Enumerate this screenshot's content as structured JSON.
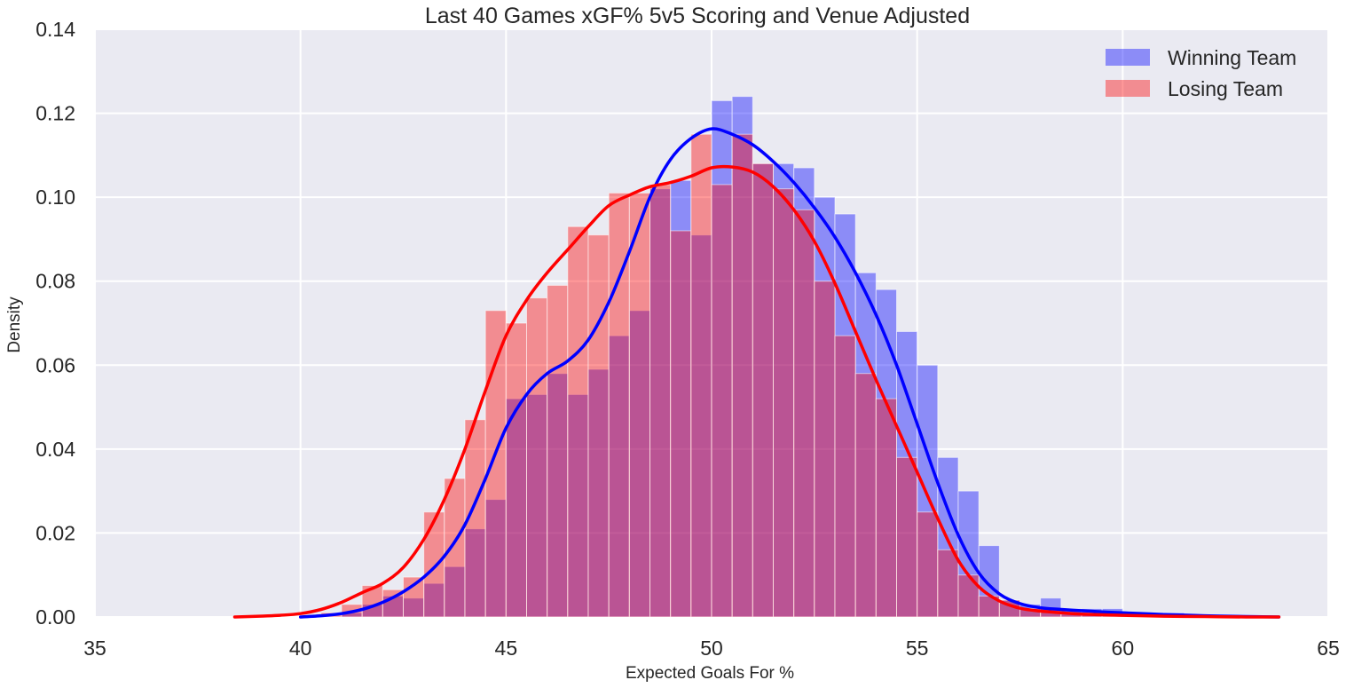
{
  "chart_data": {
    "type": "histogram",
    "title": "Last 40 Games xGF% 5v5 Scoring and Venue Adjusted",
    "xlabel": "Expected Goals For %",
    "ylabel": "Density",
    "xlim": [
      35,
      65
    ],
    "ylim": [
      0,
      0.14
    ],
    "xticks": [
      35,
      40,
      45,
      50,
      55,
      60,
      65
    ],
    "yticks": [
      0.0,
      0.02,
      0.04,
      0.06,
      0.08,
      0.1,
      0.12,
      0.14
    ],
    "xtick_labels": [
      "35",
      "40",
      "45",
      "50",
      "55",
      "60",
      "65"
    ],
    "ytick_labels": [
      "0.00",
      "0.02",
      "0.04",
      "0.06",
      "0.08",
      "0.10",
      "0.12",
      "0.14"
    ],
    "grid": true,
    "legend_position": "top-right",
    "series": [
      {
        "name": "Winning Team",
        "color": "#0000ff",
        "bar_alpha": 0.4,
        "bins": [
          [
            41.0,
            41.5,
            0.001
          ],
          [
            41.5,
            42.0,
            0.003
          ],
          [
            42.0,
            42.5,
            0.005
          ],
          [
            42.5,
            43.0,
            0.0045
          ],
          [
            43.0,
            43.5,
            0.008
          ],
          [
            43.5,
            44.0,
            0.012
          ],
          [
            44.0,
            44.5,
            0.021
          ],
          [
            44.5,
            45.0,
            0.028
          ],
          [
            45.0,
            45.5,
            0.052
          ],
          [
            45.5,
            46.0,
            0.053
          ],
          [
            46.0,
            46.5,
            0.058
          ],
          [
            46.5,
            47.0,
            0.053
          ],
          [
            47.0,
            47.5,
            0.059
          ],
          [
            47.5,
            48.0,
            0.067
          ],
          [
            48.0,
            48.5,
            0.073
          ],
          [
            48.5,
            49.0,
            0.102
          ],
          [
            49.0,
            49.5,
            0.104
          ],
          [
            49.5,
            50.0,
            0.091
          ],
          [
            50.0,
            50.5,
            0.123
          ],
          [
            50.5,
            51.0,
            0.124
          ],
          [
            51.0,
            51.5,
            0.108
          ],
          [
            51.5,
            52.0,
            0.108
          ],
          [
            52.0,
            52.5,
            0.107
          ],
          [
            52.5,
            53.0,
            0.1
          ],
          [
            53.0,
            53.5,
            0.096
          ],
          [
            53.5,
            54.0,
            0.082
          ],
          [
            54.0,
            54.5,
            0.078
          ],
          [
            54.5,
            55.0,
            0.068
          ],
          [
            55.0,
            55.5,
            0.06
          ],
          [
            55.5,
            56.0,
            0.038
          ],
          [
            56.0,
            56.5,
            0.03
          ],
          [
            56.5,
            57.0,
            0.017
          ],
          [
            57.0,
            57.5,
            0.004
          ],
          [
            57.5,
            58.0,
            0.003
          ],
          [
            58.0,
            58.5,
            0.0045
          ],
          [
            58.5,
            59.0,
            0.002
          ],
          [
            59.0,
            59.5,
            0.002
          ],
          [
            59.5,
            60.0,
            0.002
          ],
          [
            60.0,
            60.5,
            0.001
          ],
          [
            60.5,
            61.0,
            0.001
          ],
          [
            61.0,
            61.5,
            0.001
          ],
          [
            61.5,
            62.0,
            0.0005
          ]
        ],
        "kde": [
          [
            40.0,
            0.0
          ],
          [
            40.5,
            0.0003
          ],
          [
            41.0,
            0.0008
          ],
          [
            41.5,
            0.0018
          ],
          [
            42.0,
            0.0035
          ],
          [
            42.5,
            0.006
          ],
          [
            43.0,
            0.0095
          ],
          [
            43.5,
            0.0145
          ],
          [
            44.0,
            0.022
          ],
          [
            44.5,
            0.033
          ],
          [
            45.0,
            0.045
          ],
          [
            45.5,
            0.053
          ],
          [
            46.0,
            0.058
          ],
          [
            46.5,
            0.061
          ],
          [
            47.0,
            0.066
          ],
          [
            47.5,
            0.075
          ],
          [
            48.0,
            0.087
          ],
          [
            48.5,
            0.1
          ],
          [
            49.0,
            0.109
          ],
          [
            49.5,
            0.114
          ],
          [
            50.0,
            0.1163
          ],
          [
            50.5,
            0.115
          ],
          [
            51.0,
            0.1125
          ],
          [
            51.5,
            0.1085
          ],
          [
            52.0,
            0.1035
          ],
          [
            52.5,
            0.0975
          ],
          [
            53.0,
            0.0905
          ],
          [
            53.5,
            0.082
          ],
          [
            54.0,
            0.072
          ],
          [
            54.5,
            0.06
          ],
          [
            55.0,
            0.046
          ],
          [
            55.5,
            0.032
          ],
          [
            56.0,
            0.0195
          ],
          [
            56.5,
            0.0105
          ],
          [
            57.0,
            0.0055
          ],
          [
            57.5,
            0.0032
          ],
          [
            58.0,
            0.0022
          ],
          [
            58.5,
            0.0018
          ],
          [
            59.0,
            0.0015
          ],
          [
            59.5,
            0.0012
          ],
          [
            60.0,
            0.001
          ],
          [
            61.0,
            0.0006
          ],
          [
            62.0,
            0.0003
          ],
          [
            63.0,
            0.0001
          ],
          [
            63.8,
            0.0
          ]
        ]
      },
      {
        "name": "Losing Team",
        "color": "#ff0000",
        "bar_alpha": 0.4,
        "bins": [
          [
            40.5,
            41.0,
            0.001
          ],
          [
            41.0,
            41.5,
            0.003
          ],
          [
            41.5,
            42.0,
            0.0075
          ],
          [
            42.0,
            42.5,
            0.0065
          ],
          [
            42.5,
            43.0,
            0.0095
          ],
          [
            43.0,
            43.5,
            0.025
          ],
          [
            43.5,
            44.0,
            0.033
          ],
          [
            44.0,
            44.5,
            0.047
          ],
          [
            44.5,
            45.0,
            0.073
          ],
          [
            45.0,
            45.5,
            0.07
          ],
          [
            45.5,
            46.0,
            0.076
          ],
          [
            46.0,
            46.5,
            0.079
          ],
          [
            46.5,
            47.0,
            0.093
          ],
          [
            47.0,
            47.5,
            0.091
          ],
          [
            47.5,
            48.0,
            0.101
          ],
          [
            48.0,
            48.5,
            0.101
          ],
          [
            48.5,
            49.0,
            0.103
          ],
          [
            49.0,
            49.5,
            0.092
          ],
          [
            49.5,
            50.0,
            0.115
          ],
          [
            50.0,
            50.5,
            0.103
          ],
          [
            50.5,
            51.0,
            0.115
          ],
          [
            51.0,
            51.5,
            0.108
          ],
          [
            51.5,
            52.0,
            0.102
          ],
          [
            52.0,
            52.5,
            0.097
          ],
          [
            52.5,
            53.0,
            0.08
          ],
          [
            53.0,
            53.5,
            0.067
          ],
          [
            53.5,
            54.0,
            0.058
          ],
          [
            54.0,
            54.5,
            0.052
          ],
          [
            54.5,
            55.0,
            0.038
          ],
          [
            55.0,
            55.5,
            0.025
          ],
          [
            55.5,
            56.0,
            0.016
          ],
          [
            56.0,
            56.5,
            0.01
          ],
          [
            56.5,
            57.0,
            0.005
          ],
          [
            57.0,
            57.5,
            0.004
          ],
          [
            57.5,
            58.0,
            0.002
          ],
          [
            58.0,
            58.5,
            0.002
          ],
          [
            58.5,
            59.0,
            0.001
          ],
          [
            59.0,
            59.5,
            0.001
          ],
          [
            59.5,
            60.0,
            0.0005
          ]
        ],
        "kde": [
          [
            38.4,
            0.0
          ],
          [
            39.0,
            0.0002
          ],
          [
            39.5,
            0.0004
          ],
          [
            40.0,
            0.0008
          ],
          [
            40.5,
            0.0018
          ],
          [
            41.0,
            0.0035
          ],
          [
            41.5,
            0.0058
          ],
          [
            42.0,
            0.008
          ],
          [
            42.5,
            0.0118
          ],
          [
            43.0,
            0.0185
          ],
          [
            43.5,
            0.028
          ],
          [
            44.0,
            0.04
          ],
          [
            44.5,
            0.054
          ],
          [
            45.0,
            0.067
          ],
          [
            45.5,
            0.0755
          ],
          [
            46.0,
            0.082
          ],
          [
            46.5,
            0.0875
          ],
          [
            47.0,
            0.093
          ],
          [
            47.5,
            0.098
          ],
          [
            48.0,
            0.1005
          ],
          [
            48.5,
            0.1025
          ],
          [
            49.0,
            0.1035
          ],
          [
            49.5,
            0.105
          ],
          [
            50.0,
            0.107
          ],
          [
            50.5,
            0.1072
          ],
          [
            51.0,
            0.106
          ],
          [
            51.5,
            0.1025
          ],
          [
            52.0,
            0.097
          ],
          [
            52.5,
            0.0895
          ],
          [
            53.0,
            0.0795
          ],
          [
            53.5,
            0.068
          ],
          [
            54.0,
            0.0565
          ],
          [
            54.5,
            0.0455
          ],
          [
            55.0,
            0.0345
          ],
          [
            55.5,
            0.0235
          ],
          [
            56.0,
            0.0135
          ],
          [
            56.5,
            0.0072
          ],
          [
            57.0,
            0.0038
          ],
          [
            57.5,
            0.0021
          ],
          [
            58.0,
            0.0014
          ],
          [
            58.5,
            0.001
          ],
          [
            59.0,
            0.0007
          ],
          [
            60.0,
            0.0004
          ],
          [
            61.0,
            0.0002
          ],
          [
            62.0,
            0.0001
          ],
          [
            63.0,
            0.0
          ],
          [
            63.8,
            0.0
          ]
        ]
      }
    ],
    "colors": {
      "plot_background": "#eaeaf2",
      "grid": "#ffffff",
      "text": "#262626"
    }
  }
}
